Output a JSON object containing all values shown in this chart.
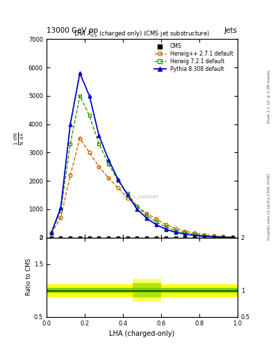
{
  "title_top": "13000 GeV pp",
  "title_right": "Jets",
  "plot_title": "LHA $\\lambda^{1}_{0.5}$ (charged only) (CMS jet substructure)",
  "xlabel": "LHA (charged-only)",
  "ylabel_ratio": "Ratio to CMS",
  "right_label_top": "Rivet 3.1.10, ≥ 3.3M events",
  "right_label_bot": "mcplots.cern.ch [arXiv:1306.3436]",
  "cms_watermark": "CMS-L_J1920187",
  "herwig_x": [
    0.025,
    0.075,
    0.125,
    0.175,
    0.225,
    0.275,
    0.325,
    0.375,
    0.425,
    0.475,
    0.525,
    0.575,
    0.625,
    0.675,
    0.725,
    0.775,
    0.825,
    0.875,
    0.925,
    0.975
  ],
  "herwig_y": [
    150,
    700,
    2200,
    3500,
    3000,
    2500,
    2100,
    1750,
    1400,
    1100,
    850,
    650,
    460,
    320,
    220,
    160,
    100,
    65,
    30,
    8
  ],
  "herwig7_x": [
    0.025,
    0.075,
    0.125,
    0.175,
    0.225,
    0.275,
    0.325,
    0.375,
    0.425,
    0.475,
    0.525,
    0.575,
    0.625,
    0.675,
    0.725,
    0.775,
    0.825,
    0.875,
    0.925,
    0.975
  ],
  "herwig7_y": [
    150,
    950,
    3300,
    5000,
    4300,
    3300,
    2600,
    2000,
    1550,
    1100,
    780,
    550,
    370,
    245,
    165,
    110,
    68,
    40,
    18,
    4
  ],
  "pythia_x": [
    0.025,
    0.075,
    0.125,
    0.175,
    0.225,
    0.275,
    0.325,
    0.375,
    0.425,
    0.475,
    0.525,
    0.575,
    0.625,
    0.675,
    0.725,
    0.775,
    0.825,
    0.875,
    0.925,
    0.975
  ],
  "pythia_y": [
    150,
    1050,
    4000,
    5800,
    5000,
    3600,
    2750,
    2050,
    1500,
    1000,
    680,
    450,
    290,
    185,
    120,
    75,
    42,
    22,
    9,
    2
  ],
  "cms_x": [
    0.025,
    0.075,
    0.125,
    0.175,
    0.225,
    0.275,
    0.325,
    0.375,
    0.425,
    0.475,
    0.525,
    0.575,
    0.625,
    0.675,
    0.725,
    0.775,
    0.825,
    0.875,
    0.925,
    0.975
  ],
  "cms_y": [
    0,
    0,
    0,
    0,
    0,
    0,
    0,
    0,
    0,
    0,
    0,
    0,
    0,
    0,
    0,
    0,
    0,
    0,
    0,
    0
  ],
  "ylim_main": [
    0,
    7000
  ],
  "xlim": [
    0,
    1
  ],
  "ratio_ylim": [
    0.5,
    2.0
  ],
  "herwig_color": "#cc6600",
  "herwig7_color": "#339900",
  "pythia_color": "#0000cc",
  "cms_color": "#000000",
  "yticks_main": [
    0,
    1000,
    2000,
    3000,
    4000,
    5000,
    6000,
    7000
  ],
  "ytick_labels_main": [
    "0",
    "1000",
    "2000",
    "3000",
    "4000",
    "5000",
    "6000",
    "7000"
  ],
  "ratio_yellow_bands": [
    [
      0.0,
      1.0,
      0.88,
      1.12
    ]
  ],
  "ratio_green_bands": [
    [
      0.0,
      1.0,
      0.95,
      1.05
    ]
  ],
  "ratio_green_extra": [
    [
      0.45,
      0.6,
      0.86,
      1.14
    ]
  ],
  "ratio_yellow_extra": [
    [
      0.45,
      0.6,
      0.78,
      1.22
    ]
  ]
}
